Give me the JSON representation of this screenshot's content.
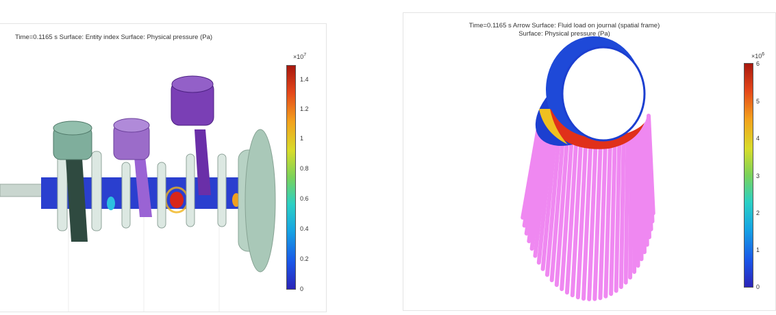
{
  "left_plot": {
    "title": "Time=0.1165 s   Surface: Entity index  Surface: Physical pressure (Pa)",
    "colorbar": {
      "multiplier_base": "×10",
      "multiplier_exp": "7",
      "ticks": [
        "1.4",
        "1.2",
        "1",
        "0.8",
        "0.6",
        "0.4",
        "0.2",
        "0"
      ]
    }
  },
  "right_plot": {
    "title_line1": "Time=0.1165 s   Arrow Surface: Fluid load on journal (spatial frame)",
    "title_line2": "Surface: Physical pressure (Pa)",
    "colorbar": {
      "multiplier_base": "×10",
      "multiplier_exp": "6",
      "ticks": [
        "6",
        "5",
        "4",
        "3",
        "2",
        "1",
        "0"
      ]
    }
  },
  "colors": {
    "piston_green": "#7fae9c",
    "piston_purple": "#9b6cc9",
    "piston_violet": "#7a3fb5",
    "journal_blue": "#1c3fd0",
    "arrow_magenta": "#ee7ef0",
    "pressure_red": "#e0301a"
  }
}
